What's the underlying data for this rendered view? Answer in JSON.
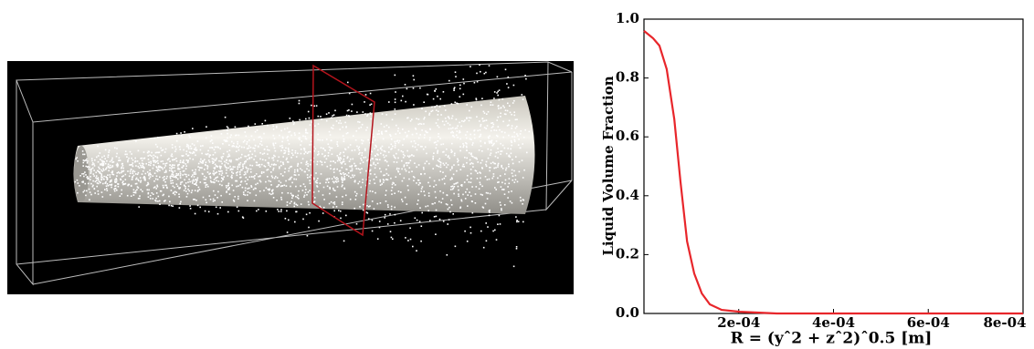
{
  "chart_data": {
    "type": "line",
    "ylabel": "Liquid Volume Fraction",
    "xlabel": "R = (yˆ2 + zˆ2)ˆ0.5 [m]",
    "x": [
      0,
      1.93e-05,
      3.25e-05,
      4.8e-05,
      6.4e-05,
      7.7e-05,
      9.1e-05,
      0.000106,
      0.000122,
      0.000139,
      0.000164,
      0.000202,
      0.00028,
      0.0008
    ],
    "values": [
      0.96,
      0.935,
      0.91,
      0.83,
      0.66,
      0.45,
      0.245,
      0.136,
      0.068,
      0.031,
      0.012,
      0.006,
      0,
      0
    ],
    "color": "#e8262b",
    "xlim": [
      0,
      0.0008
    ],
    "ylim": [
      0,
      1
    ],
    "xticks": [
      {
        "value": 0.0002,
        "label": "2e-04"
      },
      {
        "value": 0.0004,
        "label": "4e-04"
      },
      {
        "value": 0.0006,
        "label": "6e-04"
      },
      {
        "value": 0.0008,
        "label": "8e-04"
      }
    ],
    "yticks": [
      {
        "value": 0,
        "label": "0.0"
      },
      0.2,
      0.4,
      0.6,
      0.8,
      {
        "value": 1,
        "label": "1.0"
      }
    ]
  }
}
